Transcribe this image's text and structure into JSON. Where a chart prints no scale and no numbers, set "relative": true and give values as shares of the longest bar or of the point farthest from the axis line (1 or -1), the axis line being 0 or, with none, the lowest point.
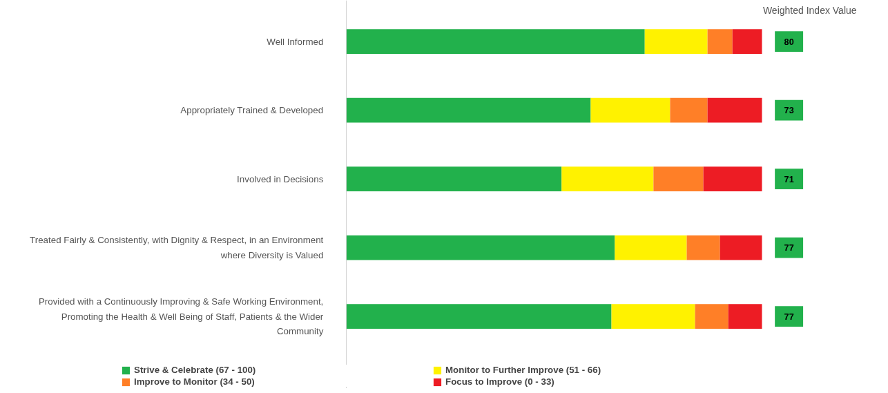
{
  "chart_data": {
    "type": "bar",
    "orientation": "horizontal",
    "stacked": true,
    "relative": true,
    "legend": "bottom",
    "categories": [
      "Well Informed",
      "Appropriately Trained & Developed",
      "Involved in Decisions",
      "Treated Fairly & Consistently, with Dignity & Respect, in an Environment where Diversity is Valued",
      "Provided with a Continuously Improving & Safe Working Environment, Promoting the Health & Well Being of Staff, Patients & the Wider Community"
    ],
    "series": [
      {
        "name": "Strive & Celebrate (67 - 100)",
        "color": "#22b14c",
        "values": [
          0.718,
          0.588,
          0.518,
          0.646,
          0.638
        ]
      },
      {
        "name": "Monitor to Further Improve (51 - 66)",
        "color": "#fff200",
        "values": [
          0.151,
          0.191,
          0.221,
          0.173,
          0.201
        ]
      },
      {
        "name": "Improve to Monitor (34 - 50)",
        "color": "#ff7f27",
        "values": [
          0.06,
          0.09,
          0.12,
          0.08,
          0.08
        ]
      },
      {
        "name": "Focus to Improve (0 - 33)",
        "color": "#ed1c24",
        "values": [
          0.071,
          0.131,
          0.141,
          0.101,
          0.081
        ]
      }
    ],
    "annotations": [
      "Weighted Index Value",
      "80",
      "73",
      "71",
      "77",
      "77"
    ]
  }
}
